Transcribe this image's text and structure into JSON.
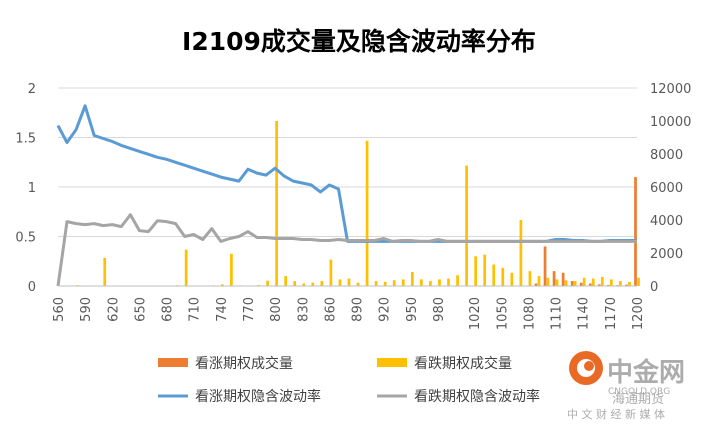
{
  "chart_data": {
    "type": "bar+line",
    "title": "I2109成交量及隐含波动率分布",
    "x": [
      560,
      570,
      580,
      590,
      600,
      610,
      620,
      630,
      640,
      650,
      660,
      670,
      680,
      690,
      700,
      710,
      720,
      730,
      740,
      750,
      760,
      770,
      780,
      790,
      800,
      810,
      820,
      830,
      840,
      850,
      860,
      870,
      880,
      890,
      900,
      910,
      920,
      930,
      940,
      950,
      960,
      970,
      980,
      990,
      1000,
      1010,
      1020,
      1030,
      1040,
      1050,
      1060,
      1070,
      1080,
      1090,
      1100,
      1110,
      1120,
      1130,
      1140,
      1150,
      1160,
      1170,
      1180,
      1190,
      1200
    ],
    "x_tick_labels": [
      "560",
      "590",
      "620",
      "650",
      "680",
      "710",
      "740",
      "770",
      "800",
      "830",
      "860",
      "890",
      "920",
      "950",
      "980",
      "1020",
      "1050",
      "1080",
      "1110",
      "1140",
      "1170",
      "1200"
    ],
    "y_left": {
      "range": [
        0,
        2
      ],
      "ticks": [
        "0",
        "0.5",
        "1",
        "1.5",
        "2"
      ]
    },
    "y_right": {
      "range": [
        0,
        12000
      ],
      "ticks": [
        "0",
        "2000",
        "4000",
        "6000",
        "8000",
        "10000",
        "12000"
      ]
    },
    "series": [
      {
        "name": "看涨期权成交量",
        "kind": "bar",
        "axis": "right",
        "color": "#ED7D31",
        "values": [
          0,
          0,
          0,
          0,
          0,
          0,
          0,
          0,
          0,
          0,
          0,
          0,
          0,
          0,
          0,
          0,
          0,
          0,
          0,
          0,
          0,
          0,
          0,
          0,
          0,
          0,
          0,
          0,
          0,
          0,
          0,
          0,
          0,
          0,
          0,
          0,
          0,
          0,
          0,
          0,
          0,
          0,
          0,
          0,
          0,
          0,
          0,
          0,
          0,
          0,
          0,
          0,
          0,
          150,
          2400,
          900,
          800,
          300,
          200,
          150,
          100,
          60,
          50,
          80,
          6600
        ]
      },
      {
        "name": "看跌期权成交量",
        "kind": "bar",
        "axis": "right",
        "color": "#FFC000",
        "values": [
          30,
          20,
          50,
          20,
          10,
          1700,
          20,
          10,
          10,
          15,
          10,
          10,
          20,
          50,
          2200,
          30,
          20,
          40,
          100,
          1950,
          40,
          20,
          60,
          320,
          10000,
          600,
          300,
          150,
          200,
          300,
          1600,
          400,
          450,
          200,
          8800,
          300,
          250,
          350,
          400,
          850,
          400,
          300,
          400,
          450,
          650,
          7300,
          1800,
          1900,
          1300,
          1100,
          800,
          4000,
          900,
          600,
          500,
          400,
          350,
          300,
          500,
          450,
          550,
          400,
          300,
          250,
          500
        ]
      },
      {
        "name": "看涨期权隐含波动率",
        "kind": "line",
        "axis": "left",
        "color": "#5B9BD5",
        "values": [
          1.62,
          1.45,
          1.58,
          1.82,
          1.52,
          1.49,
          1.46,
          1.42,
          1.39,
          1.36,
          1.33,
          1.3,
          1.28,
          1.25,
          1.22,
          1.19,
          1.16,
          1.13,
          1.1,
          1.08,
          1.06,
          1.18,
          1.14,
          1.12,
          1.19,
          1.11,
          1.06,
          1.04,
          1.02,
          0.95,
          1.02,
          0.98,
          0.45,
          0.45,
          0.45,
          0.45,
          0.45,
          0.45,
          0.45,
          0.45,
          0.45,
          0.45,
          0.45,
          0.45,
          0.45,
          0.45,
          0.45,
          0.45,
          0.45,
          0.45,
          0.45,
          0.45,
          0.45,
          0.45,
          0.45,
          0.47,
          0.47,
          0.46,
          0.46,
          0.45,
          0.45,
          0.46,
          0.46,
          0.46,
          0.46
        ]
      },
      {
        "name": "看跌期权隐含波动率",
        "kind": "line",
        "axis": "left",
        "color": "#A5A5A5",
        "values": [
          0.0,
          0.65,
          0.63,
          0.62,
          0.63,
          0.61,
          0.62,
          0.6,
          0.72,
          0.56,
          0.55,
          0.66,
          0.65,
          0.63,
          0.5,
          0.52,
          0.47,
          0.58,
          0.45,
          0.48,
          0.5,
          0.55,
          0.49,
          0.49,
          0.48,
          0.48,
          0.48,
          0.47,
          0.47,
          0.46,
          0.46,
          0.47,
          0.46,
          0.46,
          0.46,
          0.46,
          0.48,
          0.45,
          0.46,
          0.46,
          0.45,
          0.45,
          0.47,
          0.45,
          0.45,
          0.45,
          0.45,
          0.45,
          0.45,
          0.45,
          0.45,
          0.45,
          0.45,
          0.45,
          0.45,
          0.45,
          0.45,
          0.45,
          0.45,
          0.45,
          0.45,
          0.45,
          0.45,
          0.45,
          0.45
        ]
      }
    ],
    "legend_position": "bottom",
    "grid": true
  },
  "watermark": {
    "name": "中金网",
    "domain": "CNGOLD.ORG",
    "slogan": "中 文 财 经 新 媒 体",
    "source": "海通期货"
  }
}
